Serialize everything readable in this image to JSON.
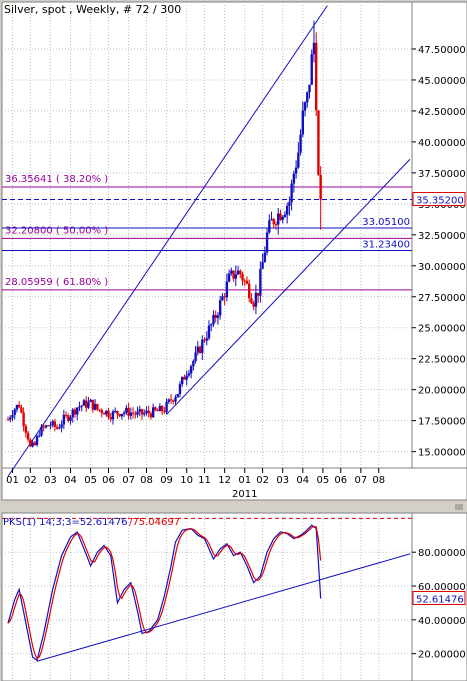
{
  "header": {
    "title": "Silver, spot , Weekly, # 72 / 300"
  },
  "chart_data": [
    {
      "type": "candlestick",
      "title": "Silver, spot , Weekly, # 72 / 300",
      "ylim": [
        14.0,
        50.0
      ],
      "ytick_labels": [
        "15.00000",
        "17.50000",
        "20.00000",
        "22.50000",
        "25.00000",
        "27.50000",
        "30.00000",
        "32.50000",
        "35.00000",
        "37.50000",
        "40.00000",
        "42.50000",
        "45.00000",
        "47.50000"
      ],
      "yticks": [
        15,
        17.5,
        20,
        22.5,
        25,
        27.5,
        30,
        32.5,
        35,
        37.5,
        40,
        42.5,
        45,
        47.5
      ],
      "xtick_labels": [
        "01",
        "02",
        "03",
        "04",
        "05",
        "06",
        "07",
        "08",
        "09",
        "10",
        "11",
        "12",
        "01",
        "02",
        "03",
        "04",
        "05",
        "06",
        "07",
        "08"
      ],
      "xtick_idx": [
        2,
        10,
        19,
        28,
        37,
        45,
        54,
        62,
        71,
        80,
        88,
        97,
        106,
        114,
        123,
        132,
        141,
        149,
        158,
        166
      ],
      "year_label": "2011",
      "year_idx": 106,
      "last_price_label": "35.35200",
      "last_price": 35.352,
      "fib_levels": [
        {
          "label": "36.35641 ( 38.20% )",
          "value": 36.35641
        },
        {
          "label": "32.20800 ( 50.00% )",
          "value": 32.208
        },
        {
          "label": "28.05959 ( 61.80% )",
          "value": 28.05959
        }
      ],
      "hlines": [
        {
          "label": "33.05100",
          "value": 33.051
        },
        {
          "label": "31.23400",
          "value": 31.234
        }
      ],
      "trendlines": [
        {
          "x1": 0,
          "y1": 13.0,
          "x2": 143,
          "y2": 51.0
        },
        {
          "x1": 71,
          "y1": 18.0,
          "x2": 180,
          "y2": 38.6
        }
      ],
      "candles": []
    },
    {
      "type": "line",
      "title": "PKS(1) 14;3;3=52.61476",
      "title_label": "PKS(1) 14;3;3=52.61476",
      "second_label": "/75.04697",
      "ylim": [
        5,
        102
      ],
      "ytick_labels": [
        "20.00000",
        "40.00000",
        "60.00000",
        "80.00000"
      ],
      "yticks": [
        20,
        40,
        60,
        80
      ],
      "last_value_label": "52.61476",
      "last_value": 52.61476,
      "ref_line": 100,
      "trendline": {
        "x1": 13,
        "y1": 15.5,
        "x2": 180,
        "y2": 79.0
      },
      "series": [
        {
          "color": "#1010c0",
          "values": []
        },
        {
          "color": "#e00000",
          "values": []
        }
      ]
    }
  ],
  "colors": {
    "background": "#ffffff",
    "frame_bg": "#d4d0c8",
    "up_candle": "#1010c0",
    "down_candle": "#e00000",
    "fib_line": "#990099",
    "trend_line": "#1010c0",
    "grid": "#c0c0c0"
  }
}
